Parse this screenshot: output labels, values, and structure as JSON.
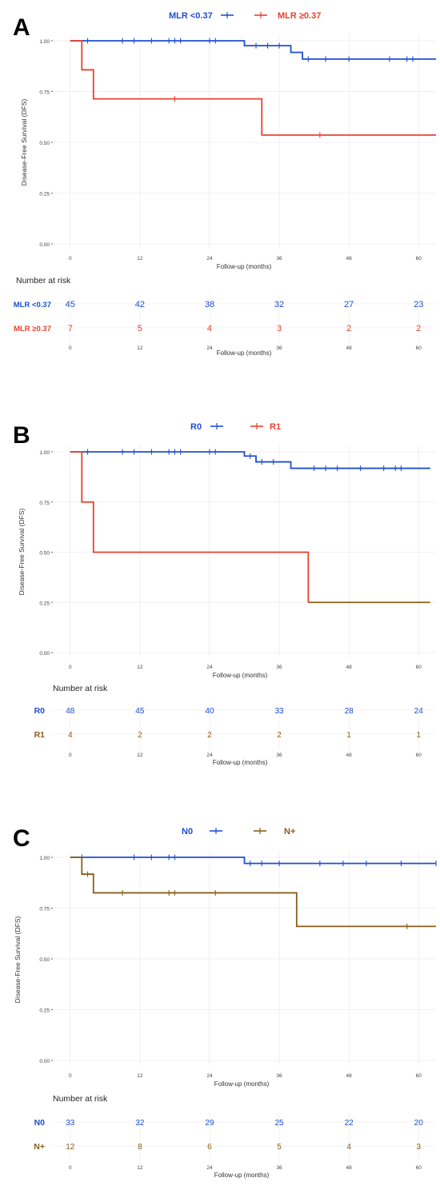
{
  "panels": [
    {
      "letter": "A",
      "ylabel": "Disease-Free Survival (DFS)",
      "xlabel": "Follow-up (months)",
      "risk_title": "Number at risk",
      "legend": [
        "MLR <0.37",
        "MLR ≥0.37"
      ],
      "risk_labels": [
        "MLR <0.37",
        "MLR ≥0.37"
      ]
    },
    {
      "letter": "B",
      "ylabel": "Disease-Free Survival (DFS)",
      "xlabel": "Follow-up (months)",
      "risk_title": "Number at risk",
      "legend": [
        "R0",
        "R1"
      ],
      "risk_labels": [
        "R0",
        "R1"
      ]
    },
    {
      "letter": "C",
      "ylabel": "Disease-Free Survival (DFS)",
      "xlabel": "Follow-up (months)",
      "risk_title": "Number at risk",
      "legend": [
        "N0",
        "N+"
      ],
      "risk_labels": [
        "N0",
        "N+"
      ]
    }
  ],
  "chart_data": [
    {
      "type": "line",
      "subtype": "kaplan-meier",
      "panel": "A",
      "xlabel": "Follow-up (months)",
      "ylabel": "Disease-Free Survival (DFS)",
      "xlim": [
        -3,
        63
      ],
      "ylim": [
        0,
        1
      ],
      "xticks": [
        0,
        12,
        24,
        36,
        48,
        60
      ],
      "yticks": [
        "0.00",
        "0.25",
        "0.50",
        "0.75",
        "1.00"
      ],
      "grid": true,
      "legend_position": "top",
      "series": [
        {
          "name": "MLR <0.37",
          "color": "#1f4fd1",
          "steps": [
            [
              0,
              1.0
            ],
            [
              30,
              0.976
            ],
            [
              38,
              0.943
            ],
            [
              40,
              0.91
            ],
            [
              63,
              0.91
            ]
          ],
          "censors": [
            [
              3,
              1.0
            ],
            [
              9,
              1.0
            ],
            [
              11,
              1.0
            ],
            [
              14,
              1.0
            ],
            [
              17,
              1.0
            ],
            [
              18,
              1.0
            ],
            [
              19,
              1.0
            ],
            [
              24,
              1.0
            ],
            [
              25,
              1.0
            ],
            [
              32,
              0.976
            ],
            [
              34,
              0.976
            ],
            [
              36,
              0.976
            ],
            [
              41,
              0.91
            ],
            [
              44,
              0.91
            ],
            [
              48,
              0.91
            ],
            [
              55,
              0.91
            ],
            [
              58,
              0.91
            ],
            [
              59,
              0.91
            ]
          ]
        },
        {
          "name": "MLR ≥0.37",
          "color": "#e8412c",
          "steps": [
            [
              0,
              1.0
            ],
            [
              2,
              0.857
            ],
            [
              4,
              0.714
            ],
            [
              33,
              0.536
            ],
            [
              63,
              0.536
            ]
          ],
          "censors": [
            [
              18,
              0.714
            ],
            [
              43,
              0.536
            ]
          ]
        }
      ],
      "risk_table": {
        "times": [
          0,
          12,
          24,
          36,
          48,
          60
        ],
        "rows": [
          {
            "name": "MLR <0.37",
            "color": "#1f4fd1",
            "values": [
              45,
              42,
              38,
              32,
              27,
              23
            ]
          },
          {
            "name": "MLR ≥0.37",
            "color": "#e8412c",
            "values": [
              7,
              5,
              4,
              3,
              2,
              2
            ]
          }
        ]
      }
    },
    {
      "type": "line",
      "subtype": "kaplan-meier",
      "panel": "B",
      "xlabel": "Follow-up (months)",
      "ylabel": "Disease-Free Survival (DFS)",
      "xlim": [
        -3,
        63
      ],
      "ylim": [
        0,
        1
      ],
      "xticks": [
        0,
        12,
        24,
        36,
        48,
        60
      ],
      "yticks": [
        "0.00",
        "0.25",
        "0.50",
        "0.75",
        "1.00"
      ],
      "grid": true,
      "legend_position": "top",
      "series": [
        {
          "name": "R0",
          "color": "#1f4fd1",
          "steps": [
            [
              0,
              1.0
            ],
            [
              30,
              0.979
            ],
            [
              32,
              0.95
            ],
            [
              38,
              0.918
            ],
            [
              62,
              0.918
            ]
          ],
          "censors": [
            [
              3,
              1.0
            ],
            [
              9,
              1.0
            ],
            [
              11,
              1.0
            ],
            [
              14,
              1.0
            ],
            [
              17,
              1.0
            ],
            [
              18,
              1.0
            ],
            [
              19,
              1.0
            ],
            [
              24,
              1.0
            ],
            [
              25,
              1.0
            ],
            [
              31,
              0.979
            ],
            [
              33,
              0.95
            ],
            [
              35,
              0.95
            ],
            [
              42,
              0.918
            ],
            [
              44,
              0.918
            ],
            [
              46,
              0.918
            ],
            [
              50,
              0.918
            ],
            [
              54,
              0.918
            ],
            [
              56,
              0.918
            ],
            [
              57,
              0.918
            ]
          ]
        },
        {
          "name": "R1",
          "color": "#e8412c",
          "color_tail": "#8b5e1a",
          "steps": [
            [
              0,
              1.0
            ],
            [
              2,
              0.75
            ],
            [
              4,
              0.5
            ],
            [
              41,
              0.25
            ],
            [
              62,
              0.25
            ]
          ],
          "censors": []
        }
      ],
      "risk_table": {
        "times": [
          0,
          12,
          24,
          36,
          48,
          60
        ],
        "rows": [
          {
            "name": "R0",
            "color": "#1f4fd1",
            "values": [
              48,
              45,
              40,
              33,
              28,
              24
            ]
          },
          {
            "name": "R1",
            "color": "#8b5e1a",
            "values": [
              4,
              2,
              2,
              2,
              1,
              1
            ]
          }
        ]
      }
    },
    {
      "type": "line",
      "subtype": "kaplan-meier",
      "panel": "C",
      "xlabel": "Follow-up (months)",
      "ylabel": "Disease-Free Survival (DFS)",
      "xlim": [
        -3,
        63
      ],
      "ylim": [
        0,
        1
      ],
      "xticks": [
        0,
        12,
        24,
        36,
        48,
        60
      ],
      "yticks": [
        "0.00",
        "0.25",
        "0.50",
        "0.75",
        "1.00"
      ],
      "grid": true,
      "legend_position": "top",
      "series": [
        {
          "name": "N0",
          "color": "#1f4fd1",
          "steps": [
            [
              0,
              1.0
            ],
            [
              30,
              0.97
            ],
            [
              63,
              0.97
            ]
          ],
          "censors": [
            [
              2,
              1.0
            ],
            [
              11,
              1.0
            ],
            [
              14,
              1.0
            ],
            [
              17,
              1.0
            ],
            [
              18,
              1.0
            ],
            [
              31,
              0.97
            ],
            [
              33,
              0.97
            ],
            [
              36,
              0.97
            ],
            [
              43,
              0.97
            ],
            [
              47,
              0.97
            ],
            [
              51,
              0.97
            ],
            [
              57,
              0.97
            ],
            [
              63,
              0.97
            ]
          ]
        },
        {
          "name": "N+",
          "color": "#8b5e1a",
          "steps": [
            [
              0,
              1.0
            ],
            [
              2,
              0.917
            ],
            [
              4,
              0.825
            ],
            [
              39,
              0.66
            ],
            [
              63,
              0.66
            ]
          ],
          "censors": [
            [
              3,
              0.917
            ],
            [
              9,
              0.825
            ],
            [
              17,
              0.825
            ],
            [
              18,
              0.825
            ],
            [
              25,
              0.825
            ],
            [
              58,
              0.66
            ]
          ]
        }
      ],
      "risk_table": {
        "times": [
          0,
          12,
          24,
          36,
          48,
          60
        ],
        "rows": [
          {
            "name": "N0",
            "color": "#1f4fd1",
            "values": [
              33,
              32,
              29,
              25,
              22,
              20
            ]
          },
          {
            "name": "N+",
            "color": "#8b5e1a",
            "values": [
              12,
              8,
              6,
              5,
              4,
              3
            ]
          }
        ]
      }
    }
  ]
}
